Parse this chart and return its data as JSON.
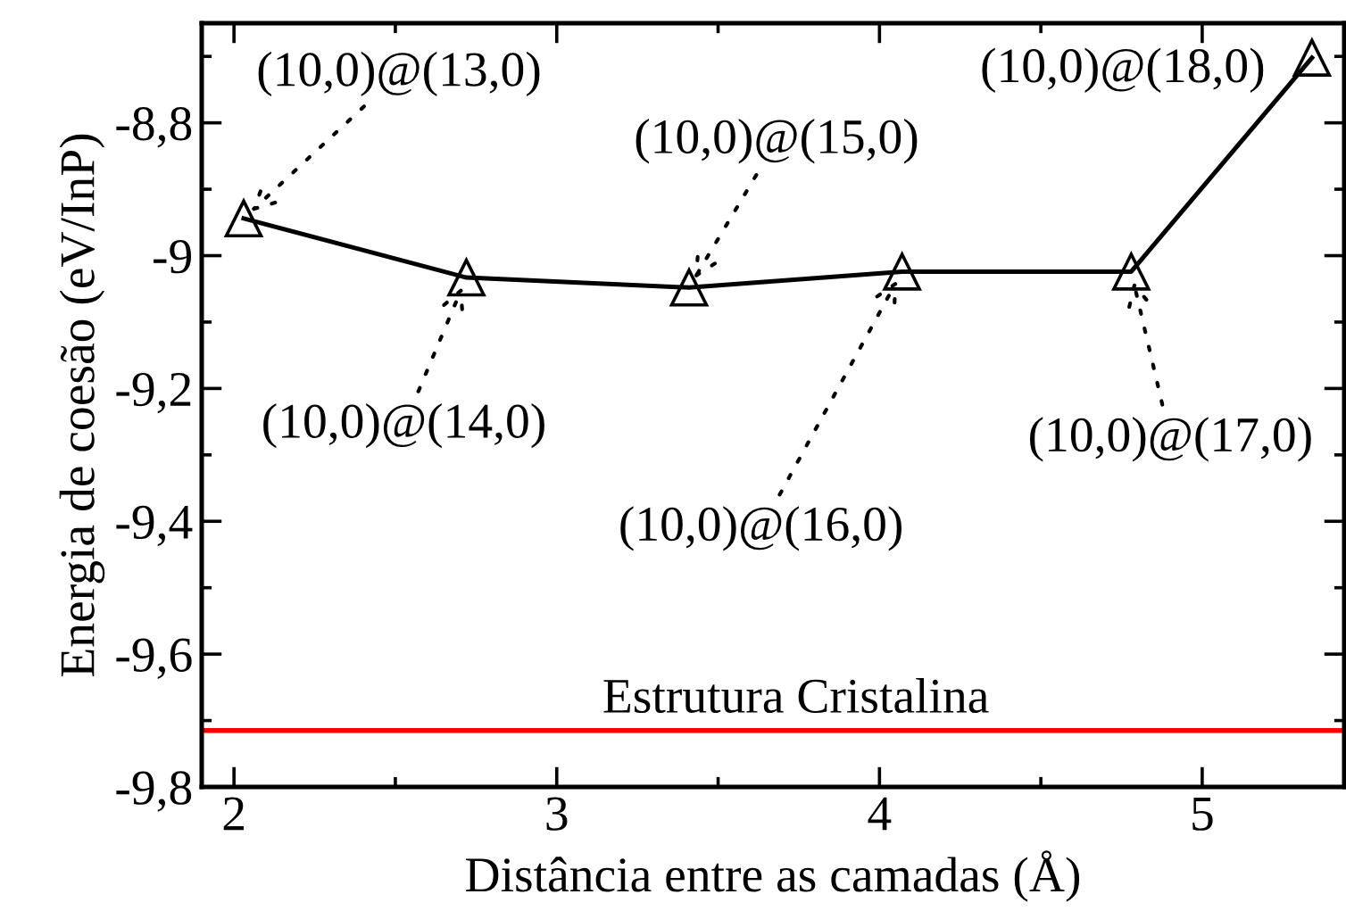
{
  "chart_data": {
    "type": "line",
    "xlabel": "Distância entre as camadas (Å)",
    "ylabel": "Energia de coesão (eV/InP)",
    "x": [
      2.03,
      2.72,
      3.41,
      4.07,
      4.78,
      5.34
    ],
    "series": [
      {
        "color": "#000000",
        "values": [
          -8.944,
          -9.033,
          -9.048,
          -9.024,
          -9.024,
          -8.702
        ]
      }
    ],
    "marker": "triangle",
    "line_style": "solid",
    "xlim": [
      1.9,
      5.44
    ],
    "xticks": [
      2,
      3,
      4,
      5
    ],
    "ylim": [
      -9.8,
      -8.65
    ],
    "yticks": [
      {
        "value": -9.8,
        "label": "-9,8"
      },
      {
        "value": -9.6,
        "label": "-9,6"
      },
      {
        "value": -9.4,
        "label": "-9,4"
      },
      {
        "value": -9.2,
        "label": "-9,2"
      },
      {
        "value": -9,
        "label": "-9"
      },
      {
        "value": -8.8,
        "label": "-8,8"
      }
    ],
    "ref_lines": [
      {
        "axis": "y",
        "value": -9.715,
        "label": "Estrutura Cristalina",
        "color": "#ff0000"
      }
    ],
    "annotations": [
      {
        "text": "(10,0)@(13,0)",
        "x": 2.03,
        "y": -8.944
      },
      {
        "text": "(10,0)@(14,0)",
        "x": 2.72,
        "y": -9.033
      },
      {
        "text": "(10,0)@(15,0)",
        "x": 3.41,
        "y": -9.048
      },
      {
        "text": "(10,0)@(16,0)",
        "x": 4.07,
        "y": -9.024
      },
      {
        "text": "(10,0)@(17,0)",
        "x": 4.78,
        "y": -9.024
      },
      {
        "text": "(10,0)@(18,0)",
        "x": 5.34,
        "y": -8.702
      }
    ],
    "grid": false,
    "legend": false
  }
}
